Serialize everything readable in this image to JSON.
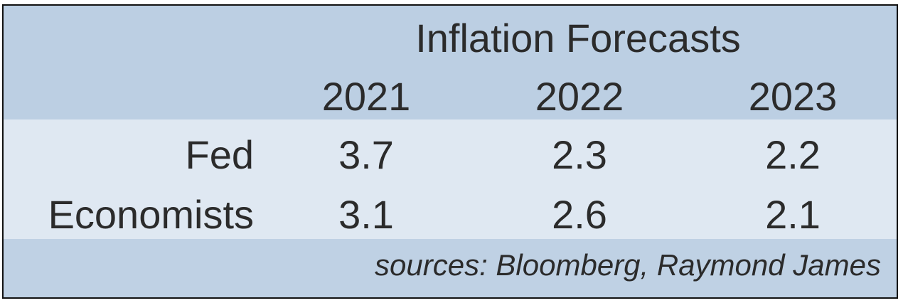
{
  "chart_data": {
    "type": "table",
    "title": "Inflation Forecasts",
    "columns": [
      "2021",
      "2022",
      "2023"
    ],
    "rows": [
      {
        "label": "Fed",
        "values": [
          "3.7",
          "2.3",
          "2.2"
        ]
      },
      {
        "label": "Economists",
        "values": [
          "3.1",
          "2.6",
          "2.1"
        ]
      }
    ],
    "source": "sources: Bloomberg, Raymond James"
  },
  "colors": {
    "header_band": "#bccfe3",
    "body_band": "#dfe8f2",
    "footer_band": "#bfd1e4",
    "text": "#2b2b2b",
    "border": "#111111"
  }
}
